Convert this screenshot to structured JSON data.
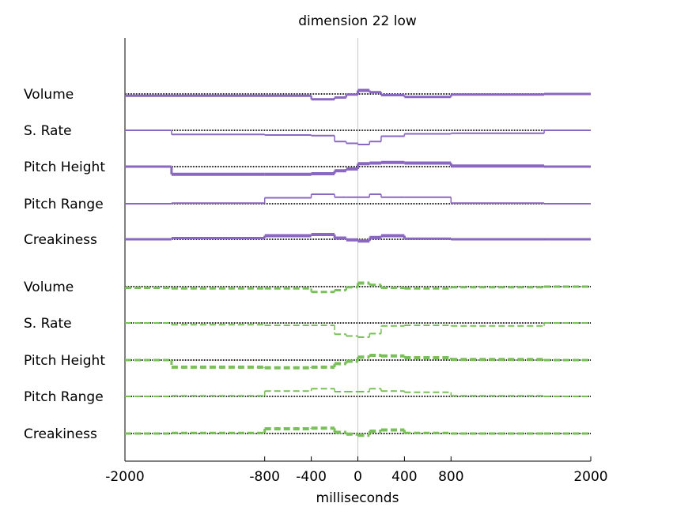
{
  "chart_data": {
    "type": "line",
    "title": "dimension 22 low",
    "xlabel": "milliseconds",
    "ylabel": "",
    "xlim": [
      -2000,
      2000
    ],
    "xticks": [
      -2000,
      -800,
      -400,
      0,
      400,
      800,
      2000
    ],
    "x_boundaries": [
      -2000,
      -1600,
      -800,
      -400,
      -200,
      -100,
      0,
      100,
      200,
      400,
      800,
      1600,
      2000
    ],
    "grid": false,
    "legend": "none",
    "groups": [
      {
        "style": "solid",
        "color": "#8a67c0",
        "series": [
          {
            "name": "Volume",
            "values": [
              -0.15,
              -0.15,
              -0.15,
              -0.45,
              -0.3,
              -0.05,
              0.3,
              0.15,
              -0.1,
              -0.25,
              -0.05,
              0.0
            ],
            "weights": [
              3,
              3,
              3,
              3,
              3,
              3,
              4,
              3,
              3,
              3,
              3,
              3
            ]
          },
          {
            "name": "S. Rate",
            "values": [
              0.0,
              -0.35,
              -0.4,
              -0.45,
              -0.95,
              -1.1,
              -1.2,
              -0.95,
              -0.5,
              -0.3,
              -0.25,
              0.0
            ],
            "weights": [
              2,
              2,
              2,
              2,
              2,
              2,
              2,
              2,
              2,
              2,
              2,
              2
            ]
          },
          {
            "name": "Pitch Height",
            "values": [
              0.0,
              -0.65,
              -0.65,
              -0.6,
              -0.35,
              -0.2,
              0.25,
              0.3,
              0.35,
              0.3,
              0.05,
              0.0
            ],
            "weights": [
              3,
              4,
              4,
              4,
              4,
              4,
              4,
              4,
              4,
              4,
              4,
              3
            ]
          },
          {
            "name": "Pitch Range",
            "values": [
              0.0,
              0.05,
              0.5,
              0.8,
              0.55,
              0.55,
              0.55,
              0.8,
              0.55,
              0.55,
              0.05,
              0.0
            ],
            "weights": [
              2,
              2,
              2,
              2,
              2,
              2,
              2,
              2,
              2,
              2,
              2,
              2
            ]
          },
          {
            "name": "Creakiness",
            "values": [
              0.0,
              0.1,
              0.3,
              0.4,
              0.1,
              -0.05,
              -0.15,
              0.15,
              0.3,
              0.05,
              0.0,
              0.0
            ],
            "weights": [
              3,
              3,
              4,
              4,
              4,
              4,
              4,
              4,
              4,
              3,
              3,
              3
            ]
          }
        ]
      },
      {
        "style": "dashed",
        "color": "#7ac05a",
        "series": [
          {
            "name": "Volume",
            "values": [
              -0.1,
              -0.15,
              -0.15,
              -0.45,
              -0.3,
              -0.05,
              0.3,
              0.15,
              -0.1,
              -0.15,
              -0.05,
              0.0
            ],
            "weights": [
              3,
              3,
              3,
              3,
              3,
              3,
              4,
              3,
              3,
              3,
              3,
              3
            ]
          },
          {
            "name": "S. Rate",
            "values": [
              0.0,
              -0.15,
              -0.2,
              -0.2,
              -0.95,
              -1.1,
              -1.2,
              -0.9,
              -0.25,
              -0.2,
              -0.25,
              0.0
            ],
            "weights": [
              2,
              2,
              2,
              2,
              2,
              2,
              2,
              2,
              2,
              2,
              2,
              2
            ]
          },
          {
            "name": "Pitch Height",
            "values": [
              0.0,
              -0.6,
              -0.65,
              -0.6,
              -0.3,
              -0.1,
              0.25,
              0.4,
              0.35,
              0.2,
              0.05,
              0.0
            ],
            "weights": [
              3,
              4,
              4,
              4,
              4,
              4,
              4,
              4,
              4,
              4,
              4,
              3
            ]
          },
          {
            "name": "Pitch Range",
            "values": [
              0.0,
              0.05,
              0.45,
              0.65,
              0.4,
              0.4,
              0.4,
              0.65,
              0.45,
              0.35,
              0.05,
              0.0
            ],
            "weights": [
              2,
              2,
              2,
              2,
              2,
              2,
              2,
              2,
              2,
              2,
              2,
              2
            ]
          },
          {
            "name": "Creakiness",
            "values": [
              0.0,
              0.05,
              0.4,
              0.45,
              0.1,
              -0.05,
              -0.15,
              0.2,
              0.3,
              0.05,
              0.0,
              0.0
            ],
            "weights": [
              3,
              3,
              4,
              4,
              4,
              4,
              4,
              4,
              4,
              3,
              3,
              3
            ]
          }
        ]
      }
    ]
  }
}
